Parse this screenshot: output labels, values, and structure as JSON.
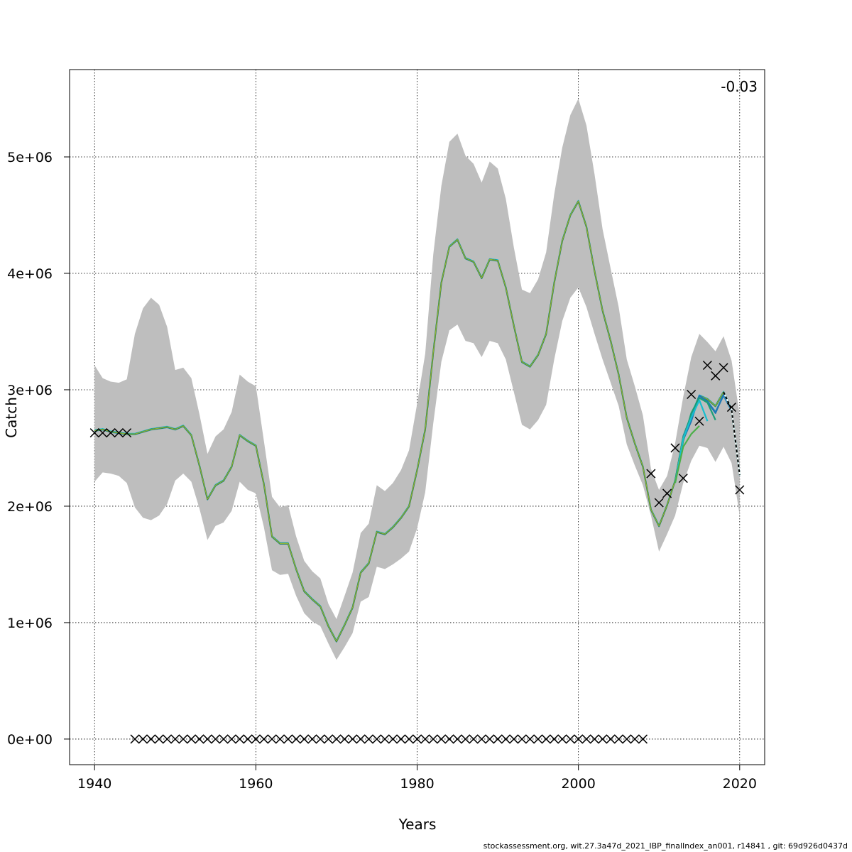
{
  "footer": "stockassessment.org, wit.27.3a47d_2021_IBP_finalIndex_an001, r14841 , git: 69d926d0437d",
  "chart_data": {
    "type": "line",
    "title": "",
    "xlabel": "Years",
    "ylabel": "Catch",
    "annotation": "-0.03",
    "xlim": [
      1936.9,
      2023.1
    ],
    "ylim": [
      -220000,
      5750000
    ],
    "xticks": [
      1940,
      1960,
      1980,
      2000,
      2020
    ],
    "xtick_labels": [
      "1940",
      "1960",
      "1980",
      "2000",
      "2020"
    ],
    "yticks": [
      0,
      1000000,
      2000000,
      3000000,
      4000000,
      5000000
    ],
    "ytick_labels": [
      "0e+00",
      "1e+06",
      "2e+06",
      "3e+06",
      "4e+06",
      "5e+06"
    ],
    "grid": true,
    "colors": {
      "ci_band": "#bebebe",
      "main": "#000000",
      "peels": [
        "#2b8cbe",
        "#1f78b4",
        "#1b9e77",
        "#17becf",
        "#4daf4a",
        "#999933"
      ],
      "points": "#000000"
    },
    "x": [
      1940,
      1941,
      1942,
      1943,
      1944,
      1945,
      1946,
      1947,
      1948,
      1949,
      1950,
      1951,
      1952,
      1953,
      1954,
      1955,
      1956,
      1957,
      1958,
      1959,
      1960,
      1961,
      1962,
      1963,
      1964,
      1965,
      1966,
      1967,
      1968,
      1969,
      1970,
      1971,
      1972,
      1973,
      1974,
      1975,
      1976,
      1977,
      1978,
      1979,
      1980,
      1981,
      1982,
      1983,
      1984,
      1985,
      1986,
      1987,
      1988,
      1989,
      1990,
      1991,
      1992,
      1993,
      1994,
      1995,
      1996,
      1997,
      1998,
      1999,
      2000,
      2001,
      2002,
      2003,
      2004,
      2005,
      2006,
      2007,
      2008,
      2009,
      2010,
      2011,
      2012,
      2013,
      2014,
      2015,
      2016,
      2017,
      2018,
      2019,
      2020
    ],
    "ci_upper": [
      3210000,
      3100000,
      3070000,
      3060000,
      3090000,
      3480000,
      3700000,
      3790000,
      3730000,
      3540000,
      3170000,
      3190000,
      3100000,
      2790000,
      2450000,
      2600000,
      2660000,
      2810000,
      3130000,
      3070000,
      3030000,
      2560000,
      2080000,
      1990000,
      2010000,
      1740000,
      1530000,
      1440000,
      1380000,
      1160000,
      1030000,
      1230000,
      1430000,
      1770000,
      1850000,
      2180000,
      2130000,
      2200000,
      2310000,
      2480000,
      2880000,
      3310000,
      4160000,
      4750000,
      5130000,
      5200000,
      5010000,
      4940000,
      4780000,
      4960000,
      4900000,
      4640000,
      4220000,
      3860000,
      3830000,
      3950000,
      4180000,
      4680000,
      5080000,
      5360000,
      5500000,
      5270000,
      4850000,
      4380000,
      4040000,
      3710000,
      3260000,
      3030000,
      2780000,
      2320000,
      2140000,
      2260000,
      2540000,
      2940000,
      3280000,
      3480000,
      3410000,
      3330000,
      3460000,
      3250000,
      2780000
    ],
    "ci_lower": [
      2210000,
      2290000,
      2280000,
      2260000,
      2200000,
      1990000,
      1900000,
      1880000,
      1920000,
      2020000,
      2220000,
      2280000,
      2210000,
      1980000,
      1710000,
      1830000,
      1860000,
      1960000,
      2210000,
      2140000,
      2110000,
      1820000,
      1450000,
      1410000,
      1420000,
      1230000,
      1080000,
      1010000,
      970000,
      820000,
      680000,
      790000,
      910000,
      1180000,
      1220000,
      1480000,
      1460000,
      1500000,
      1550000,
      1610000,
      1810000,
      2120000,
      2710000,
      3240000,
      3510000,
      3560000,
      3420000,
      3400000,
      3280000,
      3420000,
      3400000,
      3260000,
      2980000,
      2700000,
      2660000,
      2740000,
      2870000,
      3260000,
      3590000,
      3790000,
      3880000,
      3710000,
      3480000,
      3260000,
      3060000,
      2860000,
      2530000,
      2350000,
      2180000,
      1920000,
      1610000,
      1760000,
      1920000,
      2200000,
      2390000,
      2520000,
      2500000,
      2380000,
      2510000,
      2370000,
      1920000
    ],
    "series": [
      {
        "x": [
          1940,
          1941,
          1942,
          1943,
          1944,
          1945,
          1946,
          1947,
          1948,
          1949,
          1950,
          1951,
          1952,
          1953,
          1954,
          1955,
          1956,
          1957,
          1958,
          1959,
          1960,
          1961,
          1962,
          1963,
          1964,
          1965,
          1966,
          1967,
          1968,
          1969,
          1970,
          1971,
          1972,
          1973,
          1974,
          1975,
          1976,
          1977,
          1978,
          1979,
          1980,
          1981,
          1982,
          1983,
          1984,
          1985,
          1986,
          1987,
          1988,
          1989,
          1990,
          1991,
          1992,
          1993,
          1994,
          1995,
          1996,
          1997,
          1998,
          1999,
          2000,
          2001,
          2002,
          2003,
          2004,
          2005,
          2006,
          2007,
          2008,
          2009,
          2010,
          2011,
          2012,
          2013,
          2014,
          2015,
          2016,
          2017,
          2018,
          2019,
          2020
        ],
        "values": [
          2650000,
          2660000,
          2640000,
          2630000,
          2620000,
          2620000,
          2640000,
          2660000,
          2670000,
          2680000,
          2660000,
          2690000,
          2610000,
          2350000,
          2060000,
          2180000,
          2220000,
          2340000,
          2610000,
          2560000,
          2520000,
          2190000,
          1740000,
          1680000,
          1680000,
          1460000,
          1270000,
          1200000,
          1140000,
          970000,
          840000,
          980000,
          1130000,
          1430000,
          1510000,
          1780000,
          1760000,
          1820000,
          1900000,
          2000000,
          2310000,
          2660000,
          3320000,
          3920000,
          4230000,
          4290000,
          4130000,
          4100000,
          3960000,
          4120000,
          4110000,
          3880000,
          3550000,
          3240000,
          3200000,
          3300000,
          3480000,
          3920000,
          4280000,
          4500000,
          4620000,
          4400000,
          4020000,
          3680000,
          3420000,
          3130000,
          2760000,
          2540000,
          2340000,
          1970000,
          1830000,
          2010000,
          2220000,
          2600000,
          2780000,
          2950000,
          2920000,
          2860000,
          2980000,
          2830000,
          2270000
        ]
      },
      {
        "x": [
          2013,
          2014,
          2015,
          2016,
          2017,
          2018,
          2019
        ],
        "values": [
          2590000,
          2770000,
          2930000,
          2900000,
          2810000,
          2950000,
          2820000
        ]
      },
      {
        "x": [
          2013,
          2014,
          2015,
          2016,
          2017,
          2018
        ],
        "values": [
          2570000,
          2730000,
          2950000,
          2900000,
          2800000,
          2960000
        ]
      },
      {
        "x": [
          2012,
          2013,
          2014,
          2015,
          2016,
          2017
        ],
        "values": [
          2200000,
          2560000,
          2800000,
          2930000,
          2890000,
          2740000
        ]
      },
      {
        "x": [
          2012,
          2013,
          2014,
          2015,
          2016
        ],
        "values": [
          2200000,
          2580000,
          2760000,
          2910000,
          2730000
        ]
      },
      {
        "x": [
          2012,
          2013,
          2014,
          2015
        ],
        "values": [
          2200000,
          2510000,
          2620000,
          2690000
        ]
      }
    ],
    "observations": {
      "x": [
        1940,
        1941,
        1942,
        1943,
        1944,
        1945,
        1946,
        1947,
        1948,
        1949,
        1950,
        1951,
        1952,
        1953,
        1954,
        1955,
        1956,
        1957,
        1958,
        1959,
        1960,
        1961,
        1962,
        1963,
        1964,
        1965,
        1966,
        1967,
        1968,
        1969,
        1970,
        1971,
        1972,
        1973,
        1974,
        1975,
        1976,
        1977,
        1978,
        1979,
        1980,
        1981,
        1982,
        1983,
        1984,
        1985,
        1986,
        1987,
        1988,
        1989,
        1990,
        1991,
        1992,
        1993,
        1994,
        1995,
        1996,
        1997,
        1998,
        1999,
        2000,
        2001,
        2002,
        2003,
        2004,
        2005,
        2006,
        2007,
        2008,
        2009,
        2010,
        2011,
        2012,
        2013,
        2014,
        2015,
        2016,
        2017,
        2018,
        2019,
        2020
      ],
      "values": [
        2630000,
        2630000,
        2630000,
        2630000,
        2630000,
        0,
        0,
        0,
        0,
        0,
        0,
        0,
        0,
        0,
        0,
        0,
        0,
        0,
        0,
        0,
        0,
        0,
        0,
        0,
        0,
        0,
        0,
        0,
        0,
        0,
        0,
        0,
        0,
        0,
        0,
        0,
        0,
        0,
        0,
        0,
        0,
        0,
        0,
        0,
        0,
        0,
        0,
        0,
        0,
        0,
        0,
        0,
        0,
        0,
        0,
        0,
        0,
        0,
        0,
        0,
        0,
        0,
        0,
        0,
        0,
        0,
        0,
        0,
        0,
        2280000,
        2030000,
        2110000,
        2500000,
        2240000,
        2960000,
        2730000,
        3210000,
        3120000,
        3190000,
        2850000,
        2140000
      ]
    }
  }
}
